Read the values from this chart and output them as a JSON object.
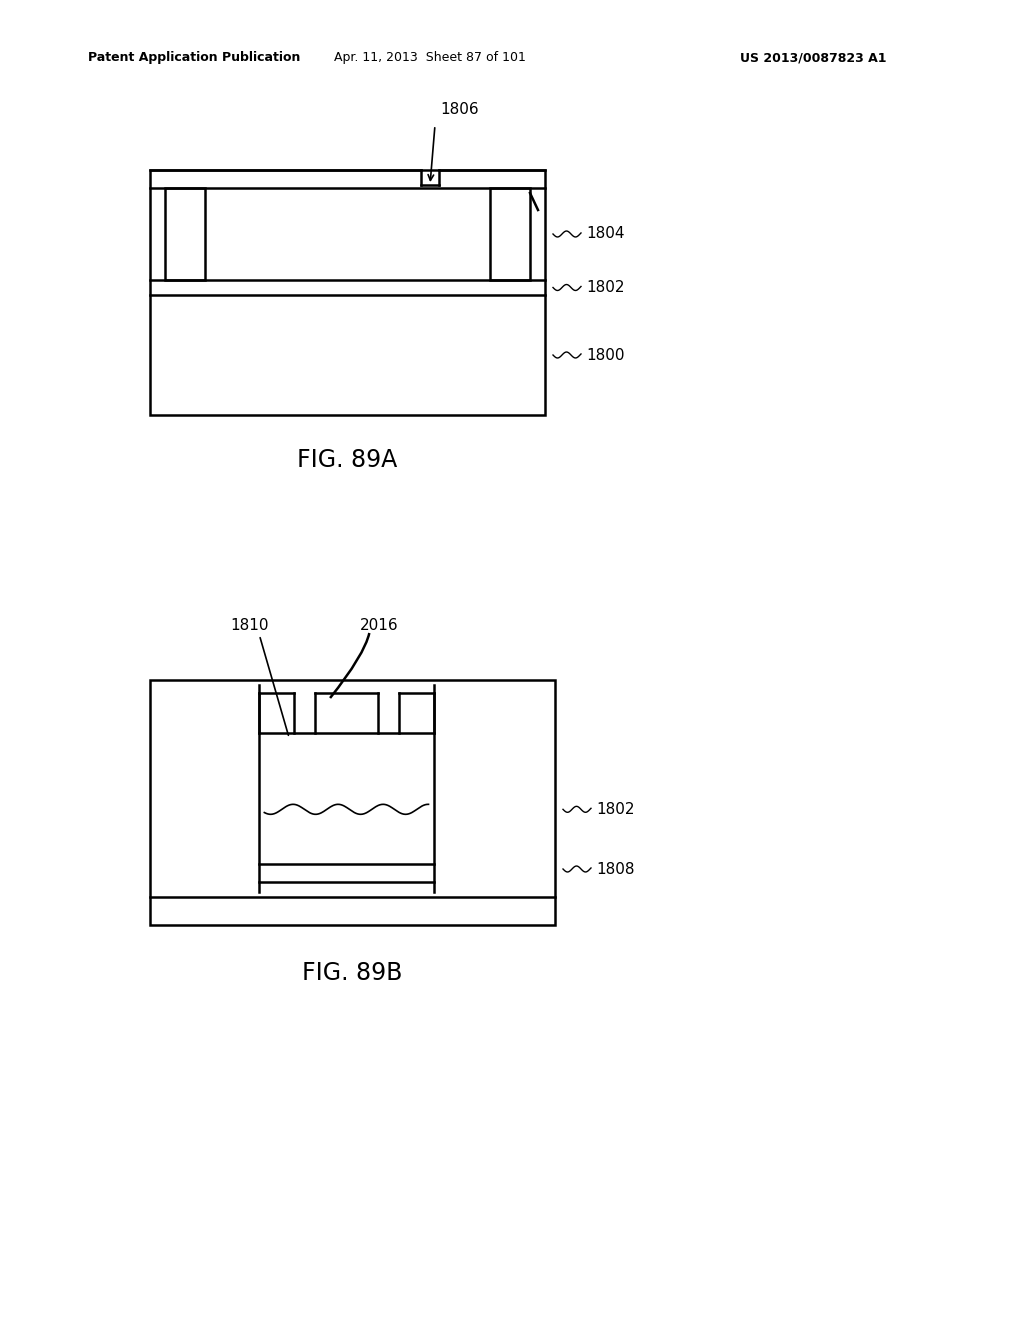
{
  "bg_color": "#ffffff",
  "line_color": "#000000",
  "header_left": "Patent Application Publication",
  "header_mid": "Apr. 11, 2013  Sheet 87 of 101",
  "header_right": "US 2013/0087823 A1",
  "fig89a_label": "FIG. 89A",
  "fig89b_label": "FIG. 89B"
}
